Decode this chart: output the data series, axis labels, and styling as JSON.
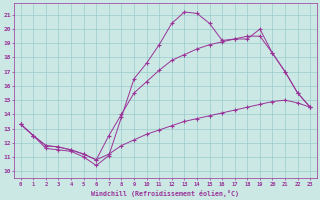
{
  "xlabel": "Windchill (Refroidissement éolien,°C)",
  "background_color": "#cce8e4",
  "line_color": "#993399",
  "grid_color": "#99cccc",
  "xlim": [
    -0.5,
    23.5
  ],
  "ylim": [
    9.5,
    21.8
  ],
  "xticks": [
    0,
    1,
    2,
    3,
    4,
    5,
    6,
    7,
    8,
    9,
    10,
    11,
    12,
    13,
    14,
    15,
    16,
    17,
    18,
    19,
    20,
    21,
    22,
    23
  ],
  "yticks": [
    10,
    11,
    12,
    13,
    14,
    15,
    16,
    17,
    18,
    19,
    20,
    21
  ],
  "series": [
    {
      "x": [
        0,
        1,
        2,
        3,
        4,
        5,
        6,
        7,
        8,
        9,
        10,
        11,
        12,
        13,
        14,
        15,
        16,
        17,
        18,
        19,
        20,
        21,
        22,
        23
      ],
      "y": [
        13.3,
        12.5,
        11.6,
        11.5,
        11.4,
        11.0,
        10.4,
        11.1,
        13.8,
        16.5,
        17.6,
        18.9,
        20.4,
        21.2,
        21.1,
        20.4,
        19.2,
        19.3,
        19.3,
        20.0,
        18.3,
        17.0,
        15.5,
        14.5
      ]
    },
    {
      "x": [
        0,
        1,
        2,
        3,
        4,
        5,
        6,
        7,
        8,
        9,
        10,
        11,
        12,
        13,
        14,
        15,
        16,
        17,
        18,
        19,
        20,
        21,
        22,
        23
      ],
      "y": [
        13.3,
        12.5,
        11.8,
        11.7,
        11.5,
        11.2,
        10.8,
        12.5,
        14.0,
        15.5,
        16.3,
        17.1,
        17.8,
        18.2,
        18.6,
        18.9,
        19.1,
        19.3,
        19.5,
        19.5,
        18.3,
        17.0,
        15.5,
        14.5
      ]
    },
    {
      "x": [
        0,
        1,
        2,
        3,
        4,
        5,
        6,
        7,
        8,
        9,
        10,
        11,
        12,
        13,
        14,
        15,
        16,
        17,
        18,
        19,
        20,
        21,
        22,
        23
      ],
      "y": [
        13.3,
        12.5,
        11.8,
        11.7,
        11.5,
        11.2,
        10.8,
        11.2,
        11.8,
        12.2,
        12.6,
        12.9,
        13.2,
        13.5,
        13.7,
        13.9,
        14.1,
        14.3,
        14.5,
        14.7,
        14.9,
        15.0,
        14.8,
        14.5
      ]
    }
  ]
}
